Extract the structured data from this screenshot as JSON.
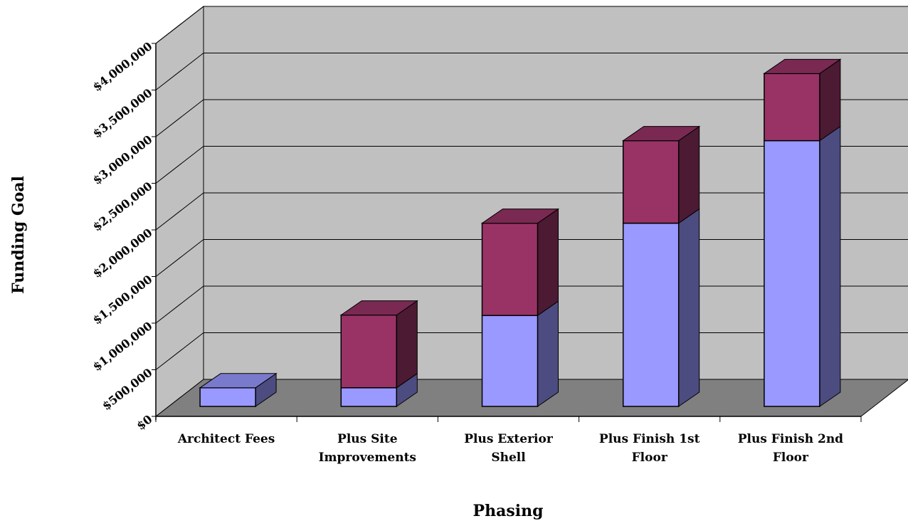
{
  "chart_data": {
    "type": "bar",
    "stacked": true,
    "three_d": true,
    "title": "",
    "xlabel": "Phasing",
    "ylabel": "Funding Goal",
    "categories": [
      "Architect Fees",
      "Plus Site Improvements",
      "Plus Exterior Shell",
      "Plus Finish 1st Floor",
      "Plus Finish 2nd Floor"
    ],
    "category_lines": [
      [
        "Architect Fees"
      ],
      [
        "Plus Site",
        "Improvements"
      ],
      [
        "Plus Exterior",
        "Shell"
      ],
      [
        "Plus Finish 1st",
        "Floor"
      ],
      [
        "Plus Finish 2nd",
        "Floor"
      ]
    ],
    "ylim": [
      0,
      4000000
    ],
    "yticks": [
      "$0",
      "$500,000",
      "$1,000,000",
      "$1,500,000",
      "$2,000,000",
      "$2,500,000",
      "$3,000,000",
      "$3,500,000",
      "$4,000,000"
    ],
    "grid": true,
    "legend": false,
    "series": [
      {
        "values": [
          200000,
          200000,
          975000,
          1965000,
          2850000
        ],
        "color": "#9999ff"
      },
      {
        "values": [
          0,
          780000,
          990000,
          885000,
          720000
        ],
        "color": "#993366"
      }
    ]
  },
  "colors": {
    "back_wall": "#c0c0c0",
    "floor": "#808080",
    "series1_side": "#4c4c80",
    "series1_top": "#7a7acc",
    "series2_side": "#4c1a33",
    "series2_top": "#7a2952"
  }
}
